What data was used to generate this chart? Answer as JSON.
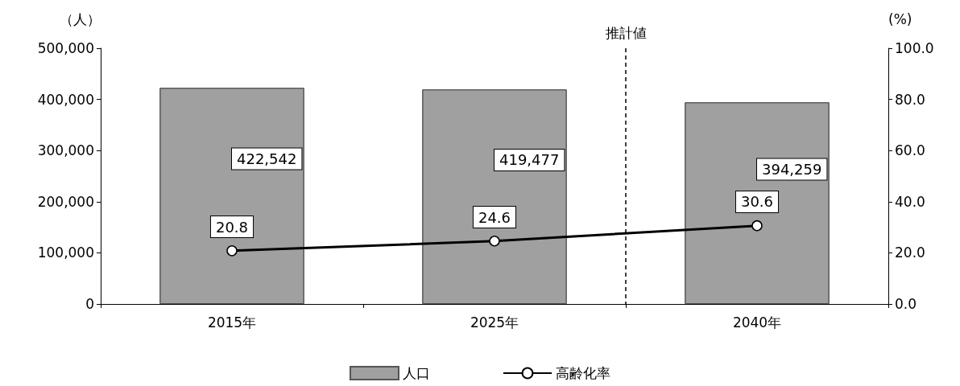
{
  "chart_data": {
    "type": "bar",
    "categories": [
      "2015年",
      "2025年",
      "2040年"
    ],
    "series": [
      {
        "name": "人口",
        "color": "#a0a0a0",
        "values": [
          422542,
          419477,
          394259
        ],
        "value_labels": [
          "422,542",
          "419,477",
          "394,259"
        ]
      },
      {
        "name": "高齢化率",
        "type": "line",
        "axis": "y2",
        "color": "#000000",
        "values": [
          20.8,
          24.6,
          30.6
        ],
        "value_labels": [
          "20.8",
          "24.6",
          "30.6"
        ]
      }
    ],
    "ylabel": "（人）",
    "y2label": "(%)",
    "ylim": [
      0,
      500000
    ],
    "yticks": [
      {
        "value": 0,
        "label": "0"
      },
      {
        "value": 100000,
        "label": "100,000"
      },
      {
        "value": 200000,
        "label": "200,000"
      },
      {
        "value": 300000,
        "label": "300,000"
      },
      {
        "value": 400000,
        "label": "400,000"
      },
      {
        "value": 500000,
        "label": "500,000"
      }
    ],
    "y2lim": [
      0,
      100
    ],
    "y2ticks": [
      {
        "value": 0,
        "label": "0.0"
      },
      {
        "value": 20,
        "label": "20.0"
      },
      {
        "value": 40,
        "label": "40.0"
      },
      {
        "value": 60,
        "label": "60.0"
      },
      {
        "value": 80,
        "label": "80.0"
      },
      {
        "value": 100,
        "label": "100.0"
      }
    ],
    "annotations": [
      "推計値"
    ],
    "marker": "circle",
    "legend": "bottom"
  }
}
